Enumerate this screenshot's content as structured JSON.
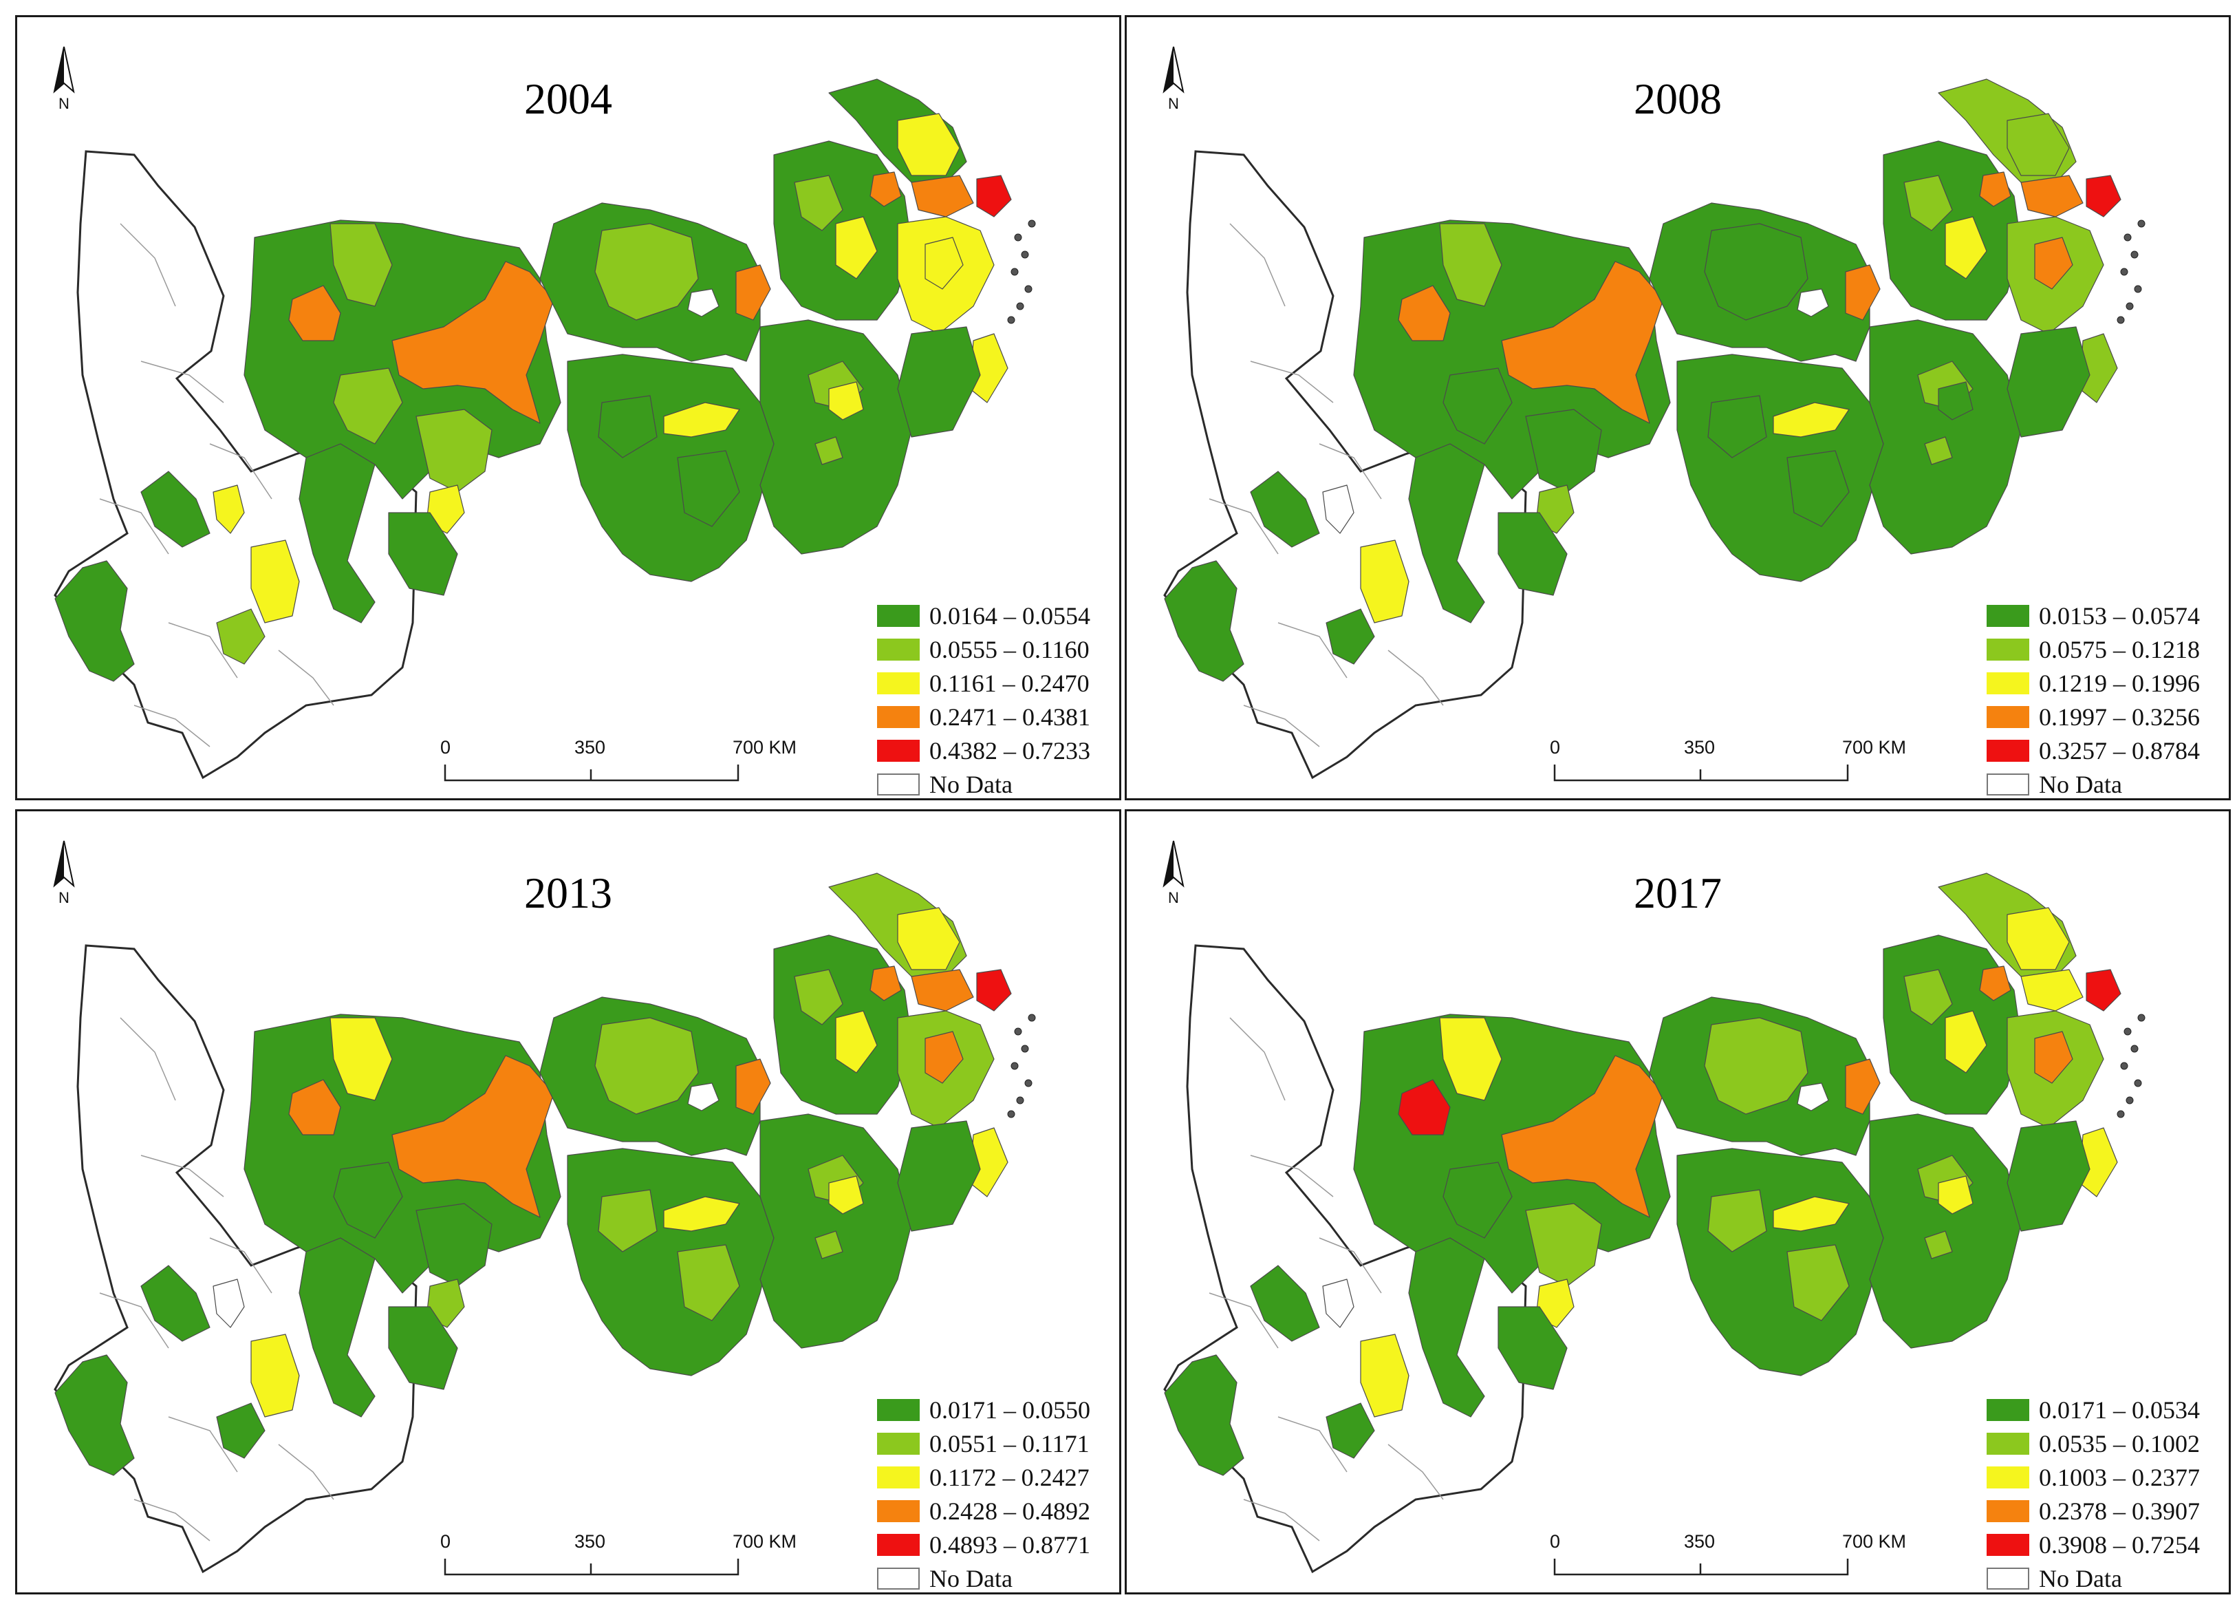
{
  "panels": [
    {
      "year": "2004",
      "legend": [
        {
          "label": "0.0164 – 0.0554",
          "color": "#3a9b1c"
        },
        {
          "label": "0.0555 – 0.1160",
          "color": "#8cc81e"
        },
        {
          "label": "0.1161 – 0.2470",
          "color": "#f5f51e"
        },
        {
          "label": "0.2471 – 0.4381",
          "color": "#f5820f"
        },
        {
          "label": "0.4382 – 0.7233",
          "color": "#ee1111"
        },
        {
          "label": "No Data",
          "color": "#ffffff"
        }
      ]
    },
    {
      "year": "2008",
      "legend": [
        {
          "label": "0.0153 – 0.0574",
          "color": "#3a9b1c"
        },
        {
          "label": "0.0575 – 0.1218",
          "color": "#8cc81e"
        },
        {
          "label": "0.1219 – 0.1996",
          "color": "#f5f51e"
        },
        {
          "label": "0.1997 – 0.3256",
          "color": "#f5820f"
        },
        {
          "label": "0.3257 – 0.8784",
          "color": "#ee1111"
        },
        {
          "label": "No Data",
          "color": "#ffffff"
        }
      ]
    },
    {
      "year": "2013",
      "legend": [
        {
          "label": "0.0171 – 0.0550",
          "color": "#3a9b1c"
        },
        {
          "label": "0.0551 – 0.1171",
          "color": "#8cc81e"
        },
        {
          "label": "0.1172 – 0.2427",
          "color": "#f5f51e"
        },
        {
          "label": "0.2428 – 0.4892",
          "color": "#f5820f"
        },
        {
          "label": "0.4893 – 0.8771",
          "color": "#ee1111"
        },
        {
          "label": "No Data",
          "color": "#ffffff"
        }
      ]
    },
    {
      "year": "2017",
      "legend": [
        {
          "label": "0.0171 – 0.0534",
          "color": "#3a9b1c"
        },
        {
          "label": "0.0535 – 0.1002",
          "color": "#8cc81e"
        },
        {
          "label": "0.1003 – 0.2377",
          "color": "#f5f51e"
        },
        {
          "label": "0.2378 – 0.3907",
          "color": "#f5820f"
        },
        {
          "label": "0.3908 – 0.7254",
          "color": "#ee1111"
        },
        {
          "label": "No Data",
          "color": "#ffffff"
        }
      ]
    }
  ],
  "scale": {
    "ticks": [
      "0",
      "350",
      "700 KM"
    ]
  },
  "north_label": "N"
}
